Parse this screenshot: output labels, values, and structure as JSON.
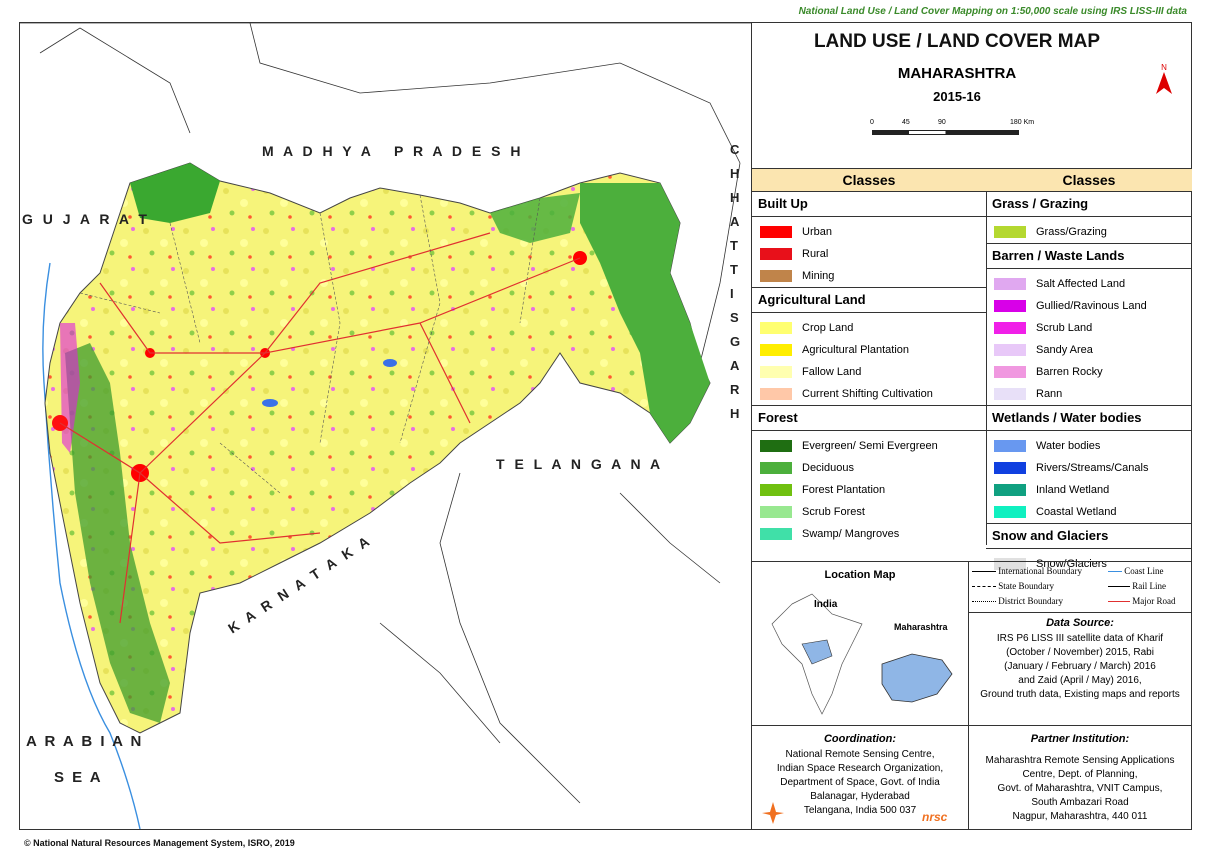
{
  "top_note": "National Land Use / Land Cover Mapping on 1:50,000 scale using IRS LISS-III data",
  "title": "LAND USE / LAND COVER MAP",
  "state": "MAHARASHTRA",
  "year": "2015-16",
  "north_label": "N",
  "scale": {
    "ticks": [
      "0",
      "45",
      "90",
      "180 Km"
    ]
  },
  "map_labels": {
    "madhya_pradesh": "M A D H Y A   P R A D E S H",
    "gujarat": "G U J A R A T",
    "chhattisgarh": "C H H A T T I S G A R H",
    "telangana": "T E L A N G A N A",
    "karnataka": "K A R N A T A K A",
    "arabian": "A R A B I A N",
    "sea": "S E A"
  },
  "legend_left": {
    "header": "Classes",
    "groups": [
      {
        "name": "Built Up",
        "items": [
          {
            "label": "Urban",
            "color": "#ff0000"
          },
          {
            "label": "Rural",
            "color": "#e8101a"
          },
          {
            "label": "Mining",
            "color": "#c0844a"
          }
        ]
      },
      {
        "name": "Agricultural Land",
        "items": [
          {
            "label": "Crop Land",
            "color": "#ffff70"
          },
          {
            "label": "Agricultural Plantation",
            "color": "#ffee00"
          },
          {
            "label": "Fallow Land",
            "color": "#ffffb0"
          },
          {
            "label": "Current Shifting Cultivation",
            "color": "#ffc8a8"
          }
        ]
      },
      {
        "name": "Forest",
        "items": [
          {
            "label": "Evergreen/ Semi Evergreen",
            "color": "#1f6e12"
          },
          {
            "label": "Deciduous",
            "color": "#4caf3c"
          },
          {
            "label": "Forest Plantation",
            "color": "#70c010"
          },
          {
            "label": "Scrub Forest",
            "color": "#98e890"
          },
          {
            "label": "Swamp/ Mangroves",
            "color": "#40e0a8"
          }
        ]
      }
    ]
  },
  "legend_right": {
    "header": "Classes",
    "groups": [
      {
        "name": "Grass / Grazing",
        "items": [
          {
            "label": "Grass/Grazing",
            "color": "#b4d830"
          }
        ]
      },
      {
        "name": "Barren / Waste Lands",
        "items": [
          {
            "label": "Salt Affected Land",
            "color": "#e0a8f0"
          },
          {
            "label": "Gullied/Ravinous Land",
            "color": "#d800e8"
          },
          {
            "label": "Scrub Land",
            "color": "#f020e8"
          },
          {
            "label": "Sandy Area",
            "color": "#e8c8f8"
          },
          {
            "label": "Barren Rocky",
            "color": "#f098e0"
          },
          {
            "label": "Rann",
            "color": "#e8e0f8"
          }
        ]
      },
      {
        "name": "Wetlands / Water bodies",
        "items": [
          {
            "label": "Water bodies",
            "color": "#6898f0"
          },
          {
            "label": "Rivers/Streams/Canals",
            "color": "#1040e0"
          },
          {
            "label": "Inland Wetland",
            "color": "#10a080"
          },
          {
            "label": "Coastal Wetland",
            "color": "#10f0c0"
          }
        ]
      },
      {
        "name": "Snow and Glaciers",
        "items": [
          {
            "label": "Snow/Glaciers",
            "color": "#e0e0e0"
          }
        ]
      }
    ]
  },
  "location_map": {
    "title": "Location Map",
    "india_label": "India",
    "state_label": "Maharashtra"
  },
  "line_legend": {
    "international": "International Boundary",
    "coast": "Coast Line",
    "state": "State Boundary",
    "rail": "Rail Line",
    "district": "District Boundary",
    "road": "Major Road"
  },
  "data_source": {
    "heading": "Data Source:",
    "lines": [
      "IRS P6 LISS III satellite data of Kharif",
      "(October / November) 2015, Rabi",
      "(January / February / March) 2016",
      "and Zaid (April / May) 2016,",
      "Ground truth data, Existing maps and reports"
    ]
  },
  "coordination": {
    "heading": "Coordination:",
    "lines": [
      "National Remote Sensing Centre,",
      "Indian Space Research Organization,",
      "Department of Space, Govt. of India",
      "Balanagar, Hyderabad",
      "Telangana, India 500 037"
    ],
    "logo": "nrsc"
  },
  "partner": {
    "heading": "Partner Institution:",
    "lines": [
      "Maharashtra Remote Sensing Applications",
      "Centre, Dept. of Planning,",
      "Govt. of Maharashtra, VNIT Campus,",
      "South Ambazari Road",
      "Nagpur, Maharashtra, 440 011"
    ]
  },
  "copyright": "© National Natural Resources Management System, ISRO, 2019"
}
